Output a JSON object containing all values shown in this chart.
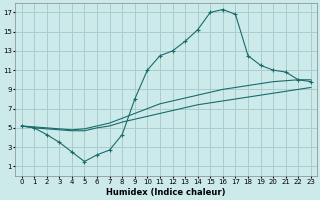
{
  "xlabel": "Humidex (Indice chaleur)",
  "bg_color": "#cceaea",
  "grid_color": "#aacccc",
  "line_color": "#1a6b6b",
  "xlim": [
    -0.5,
    23.5
  ],
  "ylim": [
    0,
    18
  ],
  "xticks": [
    0,
    1,
    2,
    3,
    4,
    5,
    6,
    7,
    8,
    9,
    10,
    11,
    12,
    13,
    14,
    15,
    16,
    17,
    18,
    19,
    20,
    21,
    22,
    23
  ],
  "yticks": [
    1,
    3,
    5,
    7,
    9,
    11,
    13,
    15,
    17
  ],
  "line1_x": [
    0,
    1,
    2,
    3,
    4,
    5,
    6,
    7,
    8,
    9,
    10,
    11,
    12,
    13,
    14,
    15,
    16,
    17,
    18,
    19,
    20,
    21,
    22,
    23
  ],
  "line1_y": [
    5.2,
    5.0,
    4.3,
    3.5,
    2.5,
    1.5,
    2.2,
    2.7,
    4.3,
    8.0,
    11.0,
    12.5,
    13.0,
    14.0,
    15.2,
    17.0,
    17.3,
    16.8,
    12.5,
    11.5,
    11.0,
    10.8,
    10.0,
    9.8
  ],
  "line2_x": [
    0,
    1,
    2,
    3,
    4,
    5,
    6,
    7,
    8,
    9,
    10,
    11,
    12,
    13,
    14,
    15,
    16,
    17,
    18,
    19,
    20,
    21,
    22,
    23
  ],
  "line2_y": [
    5.2,
    5.1,
    5.0,
    4.9,
    4.8,
    4.9,
    5.2,
    5.5,
    6.0,
    6.5,
    7.0,
    7.5,
    7.8,
    8.1,
    8.4,
    8.7,
    9.0,
    9.2,
    9.4,
    9.6,
    9.8,
    9.9,
    10.0,
    10.0
  ],
  "line3_x": [
    0,
    1,
    2,
    3,
    4,
    5,
    6,
    7,
    8,
    9,
    10,
    11,
    12,
    13,
    14,
    15,
    16,
    17,
    18,
    19,
    20,
    21,
    22,
    23
  ],
  "line3_y": [
    5.2,
    5.0,
    4.9,
    4.8,
    4.7,
    4.7,
    5.0,
    5.2,
    5.6,
    5.9,
    6.2,
    6.5,
    6.8,
    7.1,
    7.4,
    7.6,
    7.8,
    8.0,
    8.2,
    8.4,
    8.6,
    8.8,
    9.0,
    9.2
  ]
}
